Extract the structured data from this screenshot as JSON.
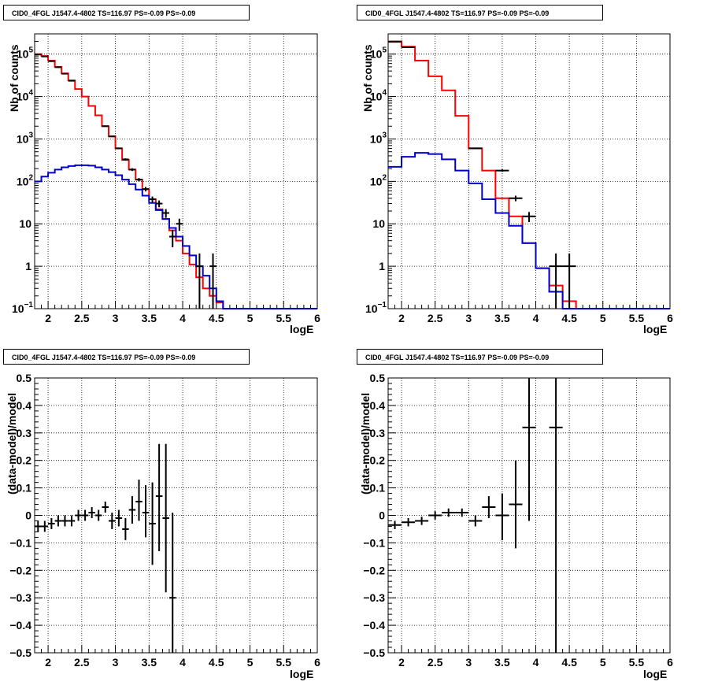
{
  "chart_data": [
    {
      "id": "top-left",
      "type": "histogram",
      "title": "CID0_4FGL J1547.4-4802 TS=116.97 PS=-0.09 PS=-0.09",
      "xlabel": "logE",
      "ylabel": "Nb of counts",
      "xlim": [
        1.8,
        6.0
      ],
      "ylim": [
        0.1,
        300000
      ],
      "yscale": "log",
      "grid": true,
      "x_ticks": [
        "2",
        "2.5",
        "3",
        "3.5",
        "4",
        "4.5",
        "5",
        "5.5",
        "6"
      ],
      "y_ticks": [
        {
          "base": "10",
          "exp": "−1",
          "v": 0.1
        },
        {
          "base": "1",
          "exp": "",
          "v": 1
        },
        {
          "base": "10",
          "exp": "",
          "v": 10
        },
        {
          "base": "10",
          "exp": "2",
          "v": 100
        },
        {
          "base": "10",
          "exp": "3",
          "v": 1000
        },
        {
          "base": "10",
          "exp": "4",
          "v": 10000
        },
        {
          "base": "10",
          "exp": "5",
          "v": 100000
        }
      ],
      "bin_edges": [
        1.8,
        1.9,
        2.0,
        2.1,
        2.2,
        2.3,
        2.4,
        2.5,
        2.6,
        2.7,
        2.8,
        2.9,
        3.0,
        3.1,
        3.2,
        3.3,
        3.4,
        3.5,
        3.6,
        3.7,
        3.8,
        3.9,
        4.0,
        4.1,
        4.2,
        4.3,
        4.4,
        4.5,
        4.6,
        4.7,
        4.8,
        4.9,
        5.0,
        5.1,
        5.2,
        5.3,
        5.4,
        5.5,
        5.6,
        5.7,
        5.8,
        5.9,
        6.0
      ],
      "series": [
        {
          "name": "",
          "color": "#ff0000",
          "values": [
            100000,
            90000,
            70000,
            50000,
            35000,
            24000,
            15000,
            10000,
            6000,
            3600,
            2000,
            1150,
            600,
            320,
            190,
            110,
            65,
            38,
            22,
            13,
            7,
            4,
            2,
            1.1,
            0.55,
            0.3,
            0.2,
            0.14,
            0.1,
            0.1,
            0.1,
            0.1,
            0.1,
            0.1,
            0.1,
            0.1,
            0.1,
            0.1,
            0.1,
            0.1,
            0.1,
            0.1
          ]
        },
        {
          "name": "",
          "color": "#0000cc",
          "values": [
            100,
            130,
            160,
            190,
            215,
            230,
            240,
            240,
            235,
            215,
            190,
            165,
            140,
            110,
            86,
            64,
            46,
            31,
            21,
            13,
            8,
            5,
            3,
            1.8,
            1,
            0.6,
            0.3,
            0.15,
            0.1,
            0.1,
            0.1,
            0.1,
            0.1,
            0.1,
            0.1,
            0.1,
            0.1,
            0.1,
            0.1,
            0.1,
            0.1,
            0.1
          ]
        }
      ],
      "points": [
        {
          "x": 1.85,
          "y": 98000,
          "ex": 0.05,
          "lo": 97500,
          "hi": 98500
        },
        {
          "x": 1.95,
          "y": 88000,
          "ex": 0.05,
          "lo": 87500,
          "hi": 88500
        },
        {
          "x": 2.05,
          "y": 68000,
          "ex": 0.05,
          "lo": 67500,
          "hi": 68500
        },
        {
          "x": 2.15,
          "y": 49000,
          "ex": 0.05,
          "lo": 48500,
          "hi": 49500
        },
        {
          "x": 2.25,
          "y": 34500,
          "ex": 0.05,
          "lo": 34200,
          "hi": 34800
        },
        {
          "x": 2.35,
          "y": 23500,
          "ex": 0.05,
          "lo": 23300,
          "hi": 23700
        },
        {
          "x": 2.85,
          "y": 2000,
          "ex": 0.05,
          "lo": 1950,
          "hi": 2050
        },
        {
          "x": 2.95,
          "y": 1150,
          "ex": 0.05,
          "lo": 1110,
          "hi": 1190
        },
        {
          "x": 3.05,
          "y": 600,
          "ex": 0.05,
          "lo": 575,
          "hi": 625
        },
        {
          "x": 3.15,
          "y": 330,
          "ex": 0.05,
          "lo": 312,
          "hi": 348
        },
        {
          "x": 3.25,
          "y": 190,
          "ex": 0.05,
          "lo": 176,
          "hi": 204
        },
        {
          "x": 3.35,
          "y": 110,
          "ex": 0.05,
          "lo": 100,
          "hi": 120
        },
        {
          "x": 3.45,
          "y": 66,
          "ex": 0.05,
          "lo": 58,
          "hi": 74
        },
        {
          "x": 3.55,
          "y": 38,
          "ex": 0.05,
          "lo": 32,
          "hi": 44
        },
        {
          "x": 3.65,
          "y": 30,
          "ex": 0.05,
          "lo": 24.5,
          "hi": 35.5
        },
        {
          "x": 3.75,
          "y": 18,
          "ex": 0.05,
          "lo": 13.8,
          "hi": 22.2
        },
        {
          "x": 3.85,
          "y": 5,
          "ex": 0.05,
          "lo": 2.8,
          "hi": 7.2
        },
        {
          "x": 3.95,
          "y": 10,
          "ex": 0.05,
          "lo": 6.8,
          "hi": 13.2
        },
        {
          "x": 4.25,
          "y": 1,
          "ex": 0.05,
          "lo": 0.1,
          "hi": 2
        },
        {
          "x": 4.45,
          "y": 1,
          "ex": 0.05,
          "lo": 0.1,
          "hi": 2
        }
      ]
    },
    {
      "id": "top-right",
      "type": "histogram",
      "title": "CID0_4FGL J1547.4-4802 TS=116.97 PS=-0.09 PS=-0.09",
      "xlabel": "logE",
      "ylabel": "Nb of counts",
      "xlim": [
        1.8,
        6.0
      ],
      "ylim": [
        0.1,
        300000
      ],
      "yscale": "log",
      "grid": true,
      "x_ticks": [
        "2",
        "2.5",
        "3",
        "3.5",
        "4",
        "4.5",
        "5",
        "5.5",
        "6"
      ],
      "y_ticks": [
        {
          "base": "10",
          "exp": "−1",
          "v": 0.1
        },
        {
          "base": "1",
          "exp": "",
          "v": 1
        },
        {
          "base": "10",
          "exp": "",
          "v": 10
        },
        {
          "base": "10",
          "exp": "2",
          "v": 100
        },
        {
          "base": "10",
          "exp": "3",
          "v": 1000
        },
        {
          "base": "10",
          "exp": "4",
          "v": 10000
        },
        {
          "base": "10",
          "exp": "5",
          "v": 100000
        }
      ],
      "bin_edges": [
        1.8,
        2.0,
        2.2,
        2.4,
        2.6,
        2.8,
        3.0,
        3.2,
        3.4,
        3.6,
        3.8,
        4.0,
        4.2,
        4.4,
        4.6,
        4.8,
        5.0,
        5.2,
        5.4,
        5.6,
        5.8,
        6.0
      ],
      "series": [
        {
          "name": "",
          "color": "#ff0000",
          "values": [
            200000,
            150000,
            70000,
            30000,
            14000,
            3500,
            600,
            180,
            40,
            15,
            3.5,
            0.9,
            0.35,
            0.15,
            0.1,
            0.1,
            0.1,
            0.1,
            0.1,
            0.1,
            0.1
          ]
        },
        {
          "name": "",
          "color": "#0000cc",
          "values": [
            220,
            380,
            470,
            440,
            330,
            180,
            90,
            38,
            18,
            9,
            3.5,
            0.9,
            0.25,
            0.1,
            0.1,
            0.1,
            0.1,
            0.1,
            0.1,
            0.1,
            0.1
          ]
        }
      ],
      "points": [
        {
          "x": 1.9,
          "y": 195000,
          "ex": 0.1,
          "lo": 194000,
          "hi": 196000
        },
        {
          "x": 2.1,
          "y": 145000,
          "ex": 0.1,
          "lo": 144000,
          "hi": 146000
        },
        {
          "x": 3.1,
          "y": 600,
          "ex": 0.1,
          "lo": 580,
          "hi": 620
        },
        {
          "x": 3.5,
          "y": 180,
          "ex": 0.1,
          "lo": 168,
          "hi": 192
        },
        {
          "x": 3.7,
          "y": 40,
          "ex": 0.1,
          "lo": 34,
          "hi": 46
        },
        {
          "x": 3.9,
          "y": 15,
          "ex": 0.1,
          "lo": 11,
          "hi": 19
        },
        {
          "x": 4.3,
          "y": 1,
          "ex": 0.1,
          "lo": 0.1,
          "hi": 2
        },
        {
          "x": 4.5,
          "y": 1,
          "ex": 0.1,
          "lo": 0.1,
          "hi": 2
        }
      ]
    },
    {
      "id": "bottom-left",
      "type": "scatter",
      "title": "CID0_4FGL J1547.4-4802 TS=116.97 PS=-0.09 PS=-0.09",
      "xlabel": "logE",
      "ylabel": "(data-model)/model",
      "xlim": [
        1.8,
        6.0
      ],
      "ylim": [
        -0.5,
        0.5
      ],
      "yscale": "linear",
      "grid": true,
      "x_ticks": [
        "2",
        "2.5",
        "3",
        "3.5",
        "4",
        "4.5",
        "5",
        "5.5",
        "6"
      ],
      "y_ticks": [
        {
          "label": "0.5",
          "v": 0.5
        },
        {
          "label": "0.4",
          "v": 0.4
        },
        {
          "label": "0.3",
          "v": 0.3
        },
        {
          "label": "0.2",
          "v": 0.2
        },
        {
          "label": "0.1",
          "v": 0.1
        },
        {
          "label": "0",
          "v": 0
        },
        {
          "label": "−0.1",
          "v": -0.1
        },
        {
          "label": "−0.2",
          "v": -0.2
        },
        {
          "label": "−0.3",
          "v": -0.3
        },
        {
          "label": "−0.4",
          "v": -0.4
        },
        {
          "label": "−0.5",
          "v": -0.5
        }
      ],
      "points": [
        {
          "x": 1.85,
          "y": -0.04,
          "ex": 0.05,
          "lo": -0.06,
          "hi": -0.02
        },
        {
          "x": 1.95,
          "y": -0.04,
          "ex": 0.05,
          "lo": -0.06,
          "hi": -0.02
        },
        {
          "x": 2.05,
          "y": -0.03,
          "ex": 0.05,
          "lo": -0.05,
          "hi": -0.01
        },
        {
          "x": 2.15,
          "y": -0.02,
          "ex": 0.05,
          "lo": -0.04,
          "hi": 0.0
        },
        {
          "x": 2.25,
          "y": -0.02,
          "ex": 0.05,
          "lo": -0.04,
          "hi": 0.0
        },
        {
          "x": 2.35,
          "y": -0.02,
          "ex": 0.05,
          "lo": -0.04,
          "hi": 0.0
        },
        {
          "x": 2.45,
          "y": 0.0,
          "ex": 0.05,
          "lo": -0.02,
          "hi": 0.02
        },
        {
          "x": 2.55,
          "y": 0.0,
          "ex": 0.05,
          "lo": -0.02,
          "hi": 0.02
        },
        {
          "x": 2.65,
          "y": 0.01,
          "ex": 0.05,
          "lo": -0.01,
          "hi": 0.03
        },
        {
          "x": 2.75,
          "y": 0.0,
          "ex": 0.05,
          "lo": -0.02,
          "hi": 0.02
        },
        {
          "x": 2.85,
          "y": 0.03,
          "ex": 0.05,
          "lo": 0.01,
          "hi": 0.05
        },
        {
          "x": 2.95,
          "y": -0.02,
          "ex": 0.05,
          "lo": -0.05,
          "hi": 0.01
        },
        {
          "x": 3.05,
          "y": -0.01,
          "ex": 0.05,
          "lo": -0.04,
          "hi": 0.02
        },
        {
          "x": 3.15,
          "y": -0.05,
          "ex": 0.05,
          "lo": -0.09,
          "hi": -0.01
        },
        {
          "x": 3.25,
          "y": 0.02,
          "ex": 0.05,
          "lo": -0.03,
          "hi": 0.07
        },
        {
          "x": 3.35,
          "y": 0.05,
          "ex": 0.05,
          "lo": -0.02,
          "hi": 0.13
        },
        {
          "x": 3.45,
          "y": 0.01,
          "ex": 0.05,
          "lo": -0.08,
          "hi": 0.11
        },
        {
          "x": 3.55,
          "y": -0.03,
          "ex": 0.05,
          "lo": -0.18,
          "hi": 0.12
        },
        {
          "x": 3.65,
          "y": 0.07,
          "ex": 0.05,
          "lo": -0.13,
          "hi": 0.26
        },
        {
          "x": 3.75,
          "y": -0.01,
          "ex": 0.05,
          "lo": -0.28,
          "hi": 0.26
        },
        {
          "x": 3.85,
          "y": -0.3,
          "ex": 0.05,
          "lo": -0.5,
          "hi": 0.01
        }
      ]
    },
    {
      "id": "bottom-right",
      "type": "scatter",
      "title": "CID0_4FGL J1547.4-4802 TS=116.97 PS=-0.09 PS=-0.09",
      "xlabel": "logE",
      "ylabel": "(data-model)/model",
      "xlim": [
        1.8,
        6.0
      ],
      "ylim": [
        -0.5,
        0.5
      ],
      "yscale": "linear",
      "grid": true,
      "x_ticks": [
        "2",
        "2.5",
        "3",
        "3.5",
        "4",
        "4.5",
        "5",
        "5.5",
        "6"
      ],
      "y_ticks": [
        {
          "label": "0.5",
          "v": 0.5
        },
        {
          "label": "0.4",
          "v": 0.4
        },
        {
          "label": "0.3",
          "v": 0.3
        },
        {
          "label": "0.2",
          "v": 0.2
        },
        {
          "label": "0.1",
          "v": 0.1
        },
        {
          "label": "0",
          "v": 0
        },
        {
          "label": "−0.1",
          "v": -0.1
        },
        {
          "label": "−0.2",
          "v": -0.2
        },
        {
          "label": "−0.3",
          "v": -0.3
        },
        {
          "label": "−0.4",
          "v": -0.4
        },
        {
          "label": "−0.5",
          "v": -0.5
        }
      ],
      "points": [
        {
          "x": 1.9,
          "y": -0.035,
          "ex": 0.1,
          "lo": -0.05,
          "hi": -0.02
        },
        {
          "x": 2.1,
          "y": -0.025,
          "ex": 0.1,
          "lo": -0.04,
          "hi": -0.01
        },
        {
          "x": 2.3,
          "y": -0.02,
          "ex": 0.1,
          "lo": -0.035,
          "hi": -0.005
        },
        {
          "x": 2.5,
          "y": 0.0,
          "ex": 0.1,
          "lo": -0.015,
          "hi": 0.015
        },
        {
          "x": 2.7,
          "y": 0.01,
          "ex": 0.1,
          "lo": -0.005,
          "hi": 0.025
        },
        {
          "x": 2.9,
          "y": 0.01,
          "ex": 0.1,
          "lo": -0.005,
          "hi": 0.025
        },
        {
          "x": 3.1,
          "y": -0.02,
          "ex": 0.1,
          "lo": -0.04,
          "hi": 0.0
        },
        {
          "x": 3.3,
          "y": 0.03,
          "ex": 0.1,
          "lo": -0.01,
          "hi": 0.07
        },
        {
          "x": 3.5,
          "y": 0.0,
          "ex": 0.1,
          "lo": -0.09,
          "hi": 0.08
        },
        {
          "x": 3.7,
          "y": 0.04,
          "ex": 0.1,
          "lo": -0.12,
          "hi": 0.2
        },
        {
          "x": 3.9,
          "y": 0.32,
          "ex": 0.1,
          "lo": -0.02,
          "hi": 0.5
        },
        {
          "x": 4.3,
          "y": 0.32,
          "ex": 0.1,
          "lo": -0.5,
          "hi": 0.5
        }
      ]
    }
  ]
}
